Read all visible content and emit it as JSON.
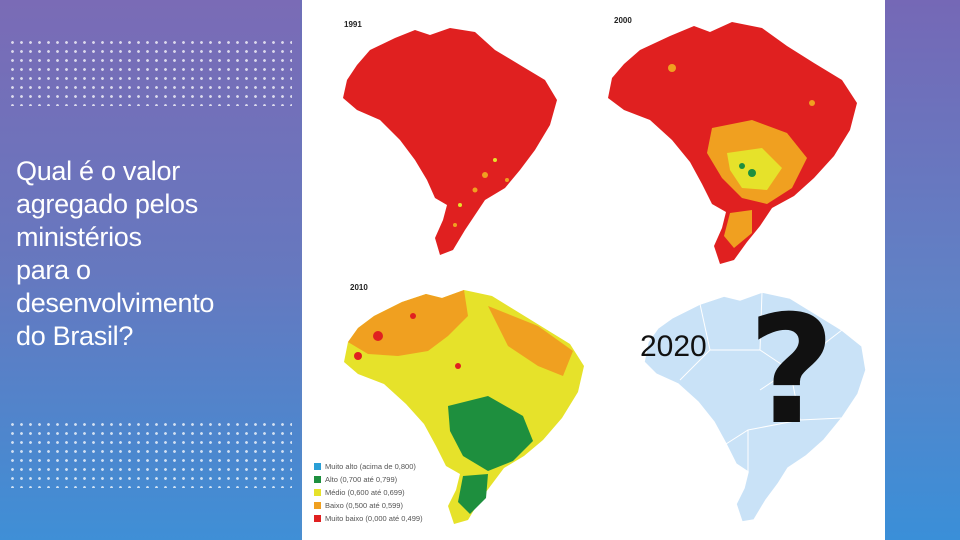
{
  "slide": {
    "question_lines": [
      "Qual é o valor",
      "agregado pelos",
      "ministérios",
      "para o",
      "desenvolvimento",
      "do Brasil?"
    ]
  },
  "maps": {
    "m1991": {
      "year": "1991"
    },
    "m2000": {
      "year": "2000"
    },
    "m2010": {
      "year": "2010"
    },
    "future": {
      "year": "2020",
      "symbol": "?"
    }
  },
  "legend": {
    "items": [
      {
        "label": "Muito alto (acima de 0,800)",
        "color": "#2a9fd6"
      },
      {
        "label": "Alto (0,700 até 0,799)",
        "color": "#1e8f3e"
      },
      {
        "label": "Médio (0,600 até 0,699)",
        "color": "#e6e22a"
      },
      {
        "label": "Baixo (0,500 até 0,599)",
        "color": "#f0a020"
      },
      {
        "label": "Muito baixo (0,000 até 0,499)",
        "color": "#e02020"
      }
    ]
  },
  "colors": {
    "very_low": "#e02020",
    "low": "#f0a020",
    "medium": "#e6e22a",
    "high": "#1e8f3e",
    "future_map": "#c9e2f7"
  }
}
